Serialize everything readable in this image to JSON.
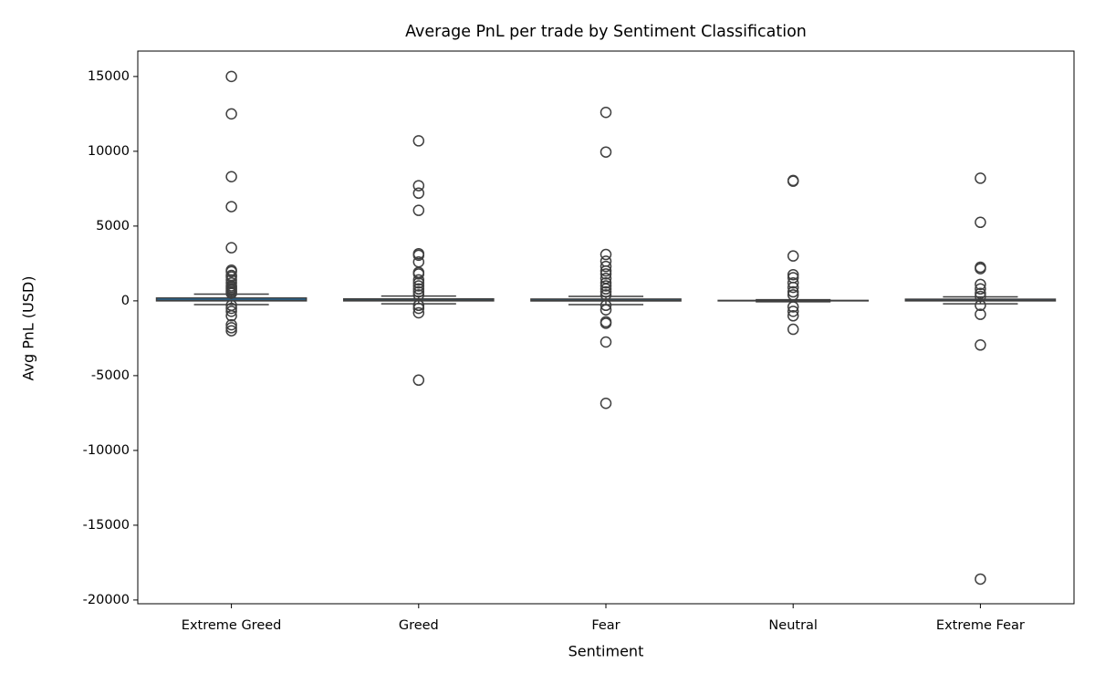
{
  "chart_data": {
    "type": "box",
    "title": "Average PnL per trade by Sentiment Classification",
    "x_label": "Sentiment",
    "y_label": "Avg PnL (USD)",
    "categories": [
      "Extreme Greed",
      "Greed",
      "Fear",
      "Neutral",
      "Extreme Fear"
    ],
    "color": "#1f77b4",
    "line_color": "#3f3f3f",
    "boxes": [
      {
        "whislo": -250,
        "q1": 0,
        "median": 40,
        "q3": 190,
        "whishi": 450,
        "fliers": [
          15000,
          12500,
          8300,
          6300,
          3550,
          2050,
          1950,
          1700,
          1600,
          1400,
          1200,
          1000,
          900,
          800,
          700,
          600,
          500,
          -300,
          -500,
          -700,
          -1000,
          -1600,
          -1800,
          -2000
        ]
      },
      {
        "whislo": -200,
        "q1": 0,
        "median": 30,
        "q3": 130,
        "whishi": 320,
        "fliers": [
          10700,
          7700,
          7200,
          6050,
          3150,
          3050,
          2600,
          1900,
          1800,
          1400,
          1200,
          1000,
          800,
          600,
          400,
          -300,
          -500,
          -800,
          -5300
        ]
      },
      {
        "whislo": -250,
        "q1": -5,
        "median": 20,
        "q3": 120,
        "whishi": 300,
        "fliers": [
          12600,
          9950,
          3100,
          2650,
          2300,
          2000,
          1800,
          1500,
          1200,
          1000,
          800,
          600,
          400,
          -300,
          -600,
          -1400,
          -1500,
          -2750,
          -6850
        ]
      },
      {
        "whislo": -60,
        "q1": 0,
        "median": 5,
        "q3": 30,
        "whishi": 80,
        "fliers": [
          8050,
          8000,
          3000,
          1750,
          1550,
          1200,
          900,
          600,
          400,
          -400,
          -700,
          -1000,
          -1900
        ]
      },
      {
        "whislo": -200,
        "q1": 0,
        "median": 25,
        "q3": 110,
        "whishi": 270,
        "fliers": [
          8200,
          5250,
          2250,
          2150,
          1100,
          800,
          500,
          300,
          -300,
          -900,
          -2950,
          -18600
        ]
      }
    ],
    "ylim": [
      -20250,
      16700
    ],
    "yticks": [
      -20000,
      -15000,
      -10000,
      -5000,
      0,
      5000,
      10000,
      15000
    ]
  }
}
